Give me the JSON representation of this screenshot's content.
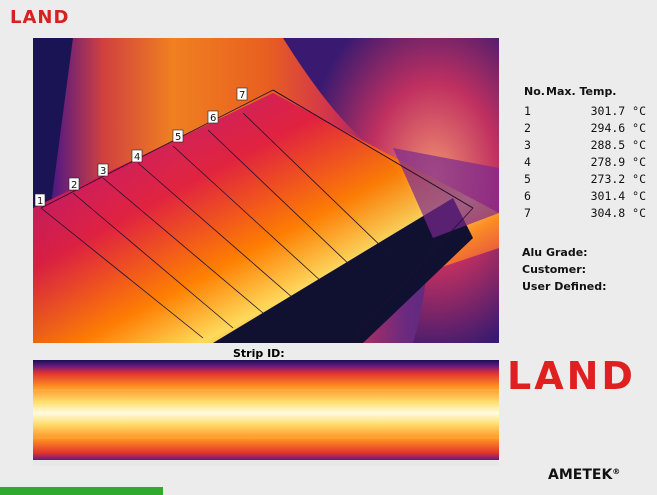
{
  "brand": {
    "top_logo": "LAND",
    "big_logo": "LAND",
    "ametek": "AMETEK",
    "ametek_suffix": "®"
  },
  "table": {
    "header_no": "No.",
    "header_temp": "Max. Temp.",
    "rows": [
      {
        "no": "1",
        "temp": "301.7 °C"
      },
      {
        "no": "2",
        "temp": "294.6 °C"
      },
      {
        "no": "3",
        "temp": "288.5 °C"
      },
      {
        "no": "4",
        "temp": "278.9 °C"
      },
      {
        "no": "5",
        "temp": "273.2 °C"
      },
      {
        "no": "6",
        "temp": "301.4 °C"
      },
      {
        "no": "7",
        "temp": "304.8 °C"
      }
    ]
  },
  "meta": {
    "alu_grade": "Alu Grade:",
    "customer": "Customer:",
    "user_defined": "User Defined:"
  },
  "strip": {
    "title": "Strip ID:"
  },
  "markers": [
    "1",
    "2",
    "3",
    "4",
    "5",
    "6",
    "7"
  ],
  "colors": {
    "brand_red": "#e02020",
    "status_green": "#2faa2f"
  }
}
